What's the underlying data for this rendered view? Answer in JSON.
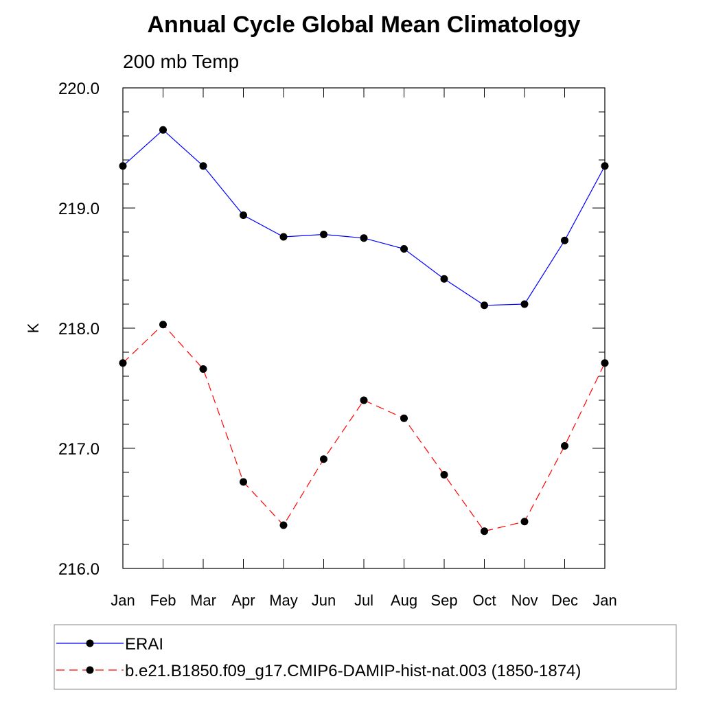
{
  "chart_data": {
    "type": "line",
    "title": "Annual Cycle Global Mean Climatology",
    "subtitle": "200 mb Temp",
    "xlabel": "",
    "ylabel": "K",
    "categories": [
      "Jan",
      "Feb",
      "Mar",
      "Apr",
      "May",
      "Jun",
      "Jul",
      "Aug",
      "Sep",
      "Oct",
      "Nov",
      "Dec",
      "Jan"
    ],
    "ylim": [
      216.0,
      220.0
    ],
    "yticks": [
      "216.0",
      "217.0",
      "218.0",
      "219.0",
      "220.0"
    ],
    "grid": false,
    "legend_position": "bottom",
    "series": [
      {
        "name": "ERAI",
        "color": "#0000ff",
        "dash": "solid",
        "values": [
          219.35,
          219.65,
          219.35,
          218.94,
          218.76,
          218.78,
          218.75,
          218.66,
          218.41,
          218.19,
          218.2,
          218.73,
          219.35
        ]
      },
      {
        "name": "b.e21.B1850.f09_g17.CMIP6-DAMIP-hist-nat.003 (1850-1874)",
        "color": "#ff0000",
        "dash": "dashed",
        "values": [
          217.71,
          218.03,
          217.66,
          216.72,
          216.36,
          216.91,
          217.4,
          217.25,
          216.78,
          216.31,
          216.39,
          217.02,
          217.71
        ]
      }
    ]
  }
}
